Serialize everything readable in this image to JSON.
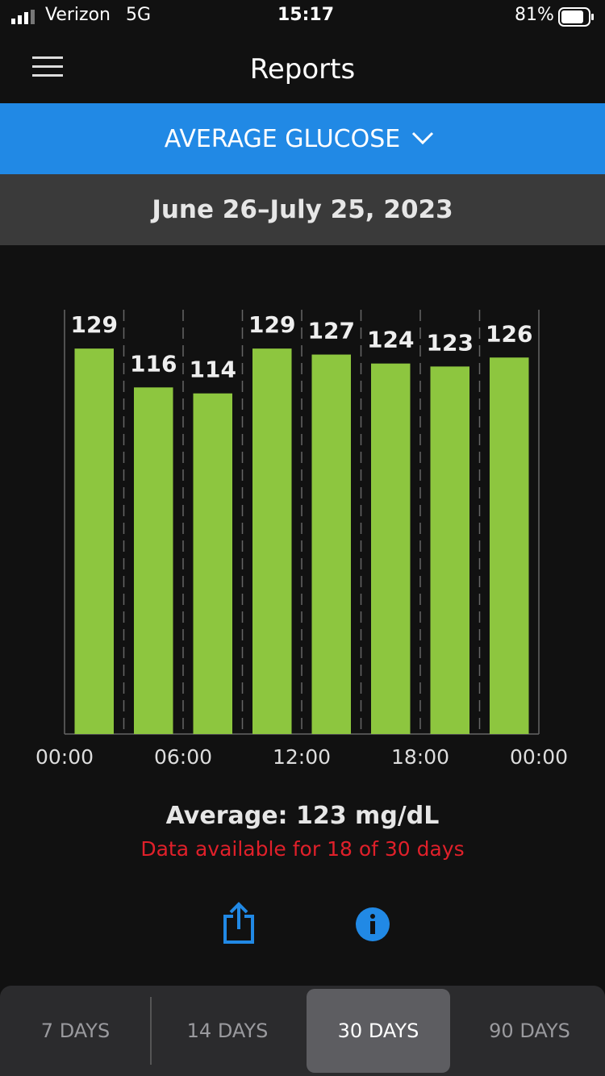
{
  "status_bar": {
    "carrier": "Verizon",
    "network": "5G",
    "time": "15:17",
    "battery": "81%"
  },
  "header": {
    "title": "Reports"
  },
  "report_selector": "AVERAGE GLUCOSE",
  "date_range": "June 26–July 25, 2023",
  "chart_data": {
    "type": "bar",
    "x": [
      1.5,
      4.5,
      7.5,
      10.5,
      13.5,
      16.5,
      19.5,
      22.5
    ],
    "values": [
      129,
      116,
      114,
      129,
      127,
      124,
      123,
      126
    ],
    "color": "#8dc63f",
    "xlim": [
      0,
      24
    ],
    "xticks": [
      {
        "value": 0,
        "label": "00:00"
      },
      {
        "value": 6,
        "label": "06:00"
      },
      {
        "value": 12,
        "label": "12:00"
      },
      {
        "value": 18,
        "label": "18:00"
      },
      {
        "value": 24,
        "label": "00:00"
      }
    ],
    "ylim": [
      0,
      142
    ]
  },
  "summary": {
    "average": "Average: 123 mg/dL",
    "availability": "Data available for 18 of 30 days"
  },
  "tabs": [
    "7 DAYS",
    "14 DAYS",
    "30 DAYS",
    "90 DAYS"
  ]
}
